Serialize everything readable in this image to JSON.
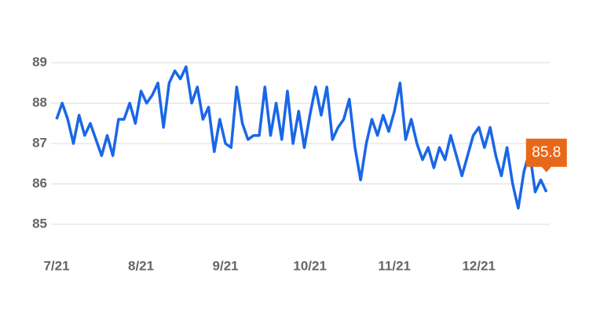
{
  "chart_data": {
    "type": "line",
    "categories": [
      "7/21",
      null,
      null,
      null,
      null,
      null,
      null,
      null,
      null,
      null,
      null,
      null,
      null,
      null,
      null,
      "8/21",
      null,
      null,
      null,
      null,
      null,
      null,
      null,
      null,
      null,
      null,
      null,
      null,
      null,
      null,
      "9/21",
      null,
      null,
      null,
      null,
      null,
      null,
      null,
      null,
      null,
      null,
      null,
      null,
      null,
      null,
      "10/21",
      null,
      null,
      null,
      null,
      null,
      null,
      null,
      null,
      null,
      null,
      null,
      null,
      null,
      null,
      "11/21",
      null,
      null,
      null,
      null,
      null,
      null,
      null,
      null,
      null,
      null,
      null,
      null,
      null,
      null,
      "12/21",
      null,
      null,
      null,
      null,
      null,
      null,
      null,
      null,
      null,
      null,
      null,
      null
    ],
    "values": [
      87.6,
      88.0,
      87.6,
      87.0,
      87.7,
      87.2,
      87.5,
      87.1,
      86.7,
      87.2,
      86.7,
      87.6,
      87.6,
      88.0,
      87.5,
      88.3,
      88.0,
      88.2,
      88.5,
      87.4,
      88.5,
      88.8,
      88.6,
      88.9,
      88.0,
      88.4,
      87.6,
      87.9,
      86.8,
      87.6,
      87.0,
      86.9,
      88.4,
      87.5,
      87.1,
      87.2,
      87.2,
      88.4,
      87.2,
      88.0,
      87.1,
      88.3,
      87.0,
      87.8,
      86.9,
      87.7,
      88.4,
      87.7,
      88.4,
      87.1,
      87.4,
      87.6,
      88.1,
      86.9,
      86.1,
      87.0,
      87.6,
      87.2,
      87.7,
      87.3,
      87.8,
      88.5,
      87.1,
      87.6,
      87.0,
      86.6,
      86.9,
      86.4,
      86.9,
      86.6,
      87.2,
      86.7,
      86.2,
      86.7,
      87.2,
      87.4,
      86.9,
      87.4,
      86.7,
      86.2,
      86.9,
      86.0,
      85.4,
      86.3,
      86.8,
      85.8,
      86.1,
      85.8
    ],
    "color": "#1a66e8",
    "label_color": "#e8681a",
    "ylim": [
      85,
      89
    ],
    "yticks": [
      85,
      86,
      87,
      88,
      89
    ],
    "grid": true
  }
}
